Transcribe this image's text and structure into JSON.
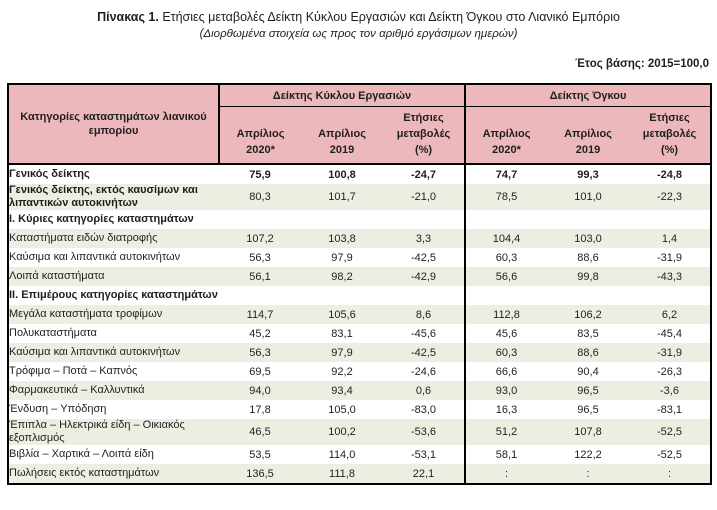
{
  "title": {
    "prefix": "Πίνακας 1.",
    "rest": "Ετήσιες μεταβολές Δείκτη Κύκλου Εργασιών και Δείκτη Όγκου στο Λιανικό Εμπόριο"
  },
  "subtitle": "(Διορθωμένα στοιχεία ως προς τον αριθμό εργάσιμων ημερών)",
  "base_year_note": "Έτος βάσης: 2015=100,0",
  "colors": {
    "header_bg": "#edb8bc",
    "row_shade": "#eeede2",
    "border": "#000000",
    "text": "#1f1f1f"
  },
  "table": {
    "category_header": "Κατηγορίες καταστημάτων λιανικού εμπορίου",
    "groups": [
      {
        "label": "Δείκτης Κύκλου Εργασιών",
        "columns": [
          {
            "lines": [
              "Απρίλιος",
              "2020*"
            ]
          },
          {
            "lines": [
              "Απρίλιος",
              "2019"
            ]
          },
          {
            "lines": [
              "Ετήσιες",
              "μεταβολές",
              "(%)"
            ]
          }
        ]
      },
      {
        "label": "Δείκτης Όγκου",
        "columns": [
          {
            "lines": [
              "Απρίλιος",
              "2020*"
            ]
          },
          {
            "lines": [
              "Απρίλιος",
              "2019"
            ]
          },
          {
            "lines": [
              "Ετήσιες",
              "μεταβολές",
              "(%)"
            ]
          }
        ]
      }
    ],
    "rows": [
      {
        "label": "Γενικός δείκτης",
        "bold": true,
        "boldValues": true,
        "shaded": false,
        "values": [
          "75,9",
          "100,8",
          "-24,7",
          "74,7",
          "99,3",
          "-24,8"
        ]
      },
      {
        "label": "Γενικός δείκτης, εκτός καυσίμων και λιπαντικών αυτοκινήτων",
        "bold": true,
        "boldValues": false,
        "shaded": true,
        "values": [
          "80,3",
          "101,7",
          "-21,0",
          "78,5",
          "101,0",
          "-22,3"
        ]
      },
      {
        "label": "Ι. Κύριες κατηγορίες καταστημάτων",
        "bold": true,
        "boldValues": false,
        "shaded": false,
        "values": [
          "",
          "",
          "",
          "",
          "",
          ""
        ]
      },
      {
        "label": "Καταστήματα ειδών διατροφής",
        "bold": false,
        "boldValues": false,
        "shaded": true,
        "values": [
          "107,2",
          "103,8",
          "3,3",
          "104,4",
          "103,0",
          "1,4"
        ]
      },
      {
        "label": "Καύσιμα και λιπαντικά αυτοκινήτων",
        "bold": false,
        "boldValues": false,
        "shaded": false,
        "values": [
          "56,3",
          "97,9",
          "-42,5",
          "60,3",
          "88,6",
          "-31,9"
        ]
      },
      {
        "label": "Λοιπά καταστήματα",
        "bold": false,
        "boldValues": false,
        "shaded": true,
        "values": [
          "56,1",
          "98,2",
          "-42,9",
          "56,6",
          "99,8",
          "-43,3"
        ]
      },
      {
        "label": "ΙΙ. Επιμέρους κατηγορίες καταστημάτων",
        "bold": true,
        "boldValues": false,
        "shaded": false,
        "values": [
          "",
          "",
          "",
          "",
          "",
          ""
        ]
      },
      {
        "label": "Μεγάλα καταστήματα τροφίμων",
        "bold": false,
        "boldValues": false,
        "shaded": true,
        "values": [
          "114,7",
          "105,6",
          "8,6",
          "112,8",
          "106,2",
          "6,2"
        ]
      },
      {
        "label": "Πολυκαταστήματα",
        "bold": false,
        "boldValues": false,
        "shaded": false,
        "values": [
          "45,2",
          "83,1",
          "-45,6",
          "45,6",
          "83,5",
          "-45,4"
        ]
      },
      {
        "label": "Καύσιμα και λιπαντικά αυτοκινήτων",
        "bold": false,
        "boldValues": false,
        "shaded": true,
        "values": [
          "56,3",
          "97,9",
          "-42,5",
          "60,3",
          "88,6",
          "-31,9"
        ]
      },
      {
        "label": "Τρόφιμα – Ποτά – Καπνός",
        "bold": false,
        "boldValues": false,
        "shaded": false,
        "values": [
          "69,5",
          "92,2",
          "-24,6",
          "66,6",
          "90,4",
          "-26,3"
        ]
      },
      {
        "label": "Φαρμακευτικά – Καλλυντικά",
        "bold": false,
        "boldValues": false,
        "shaded": true,
        "values": [
          "94,0",
          "93,4",
          "0,6",
          "93,0",
          "96,5",
          "-3,6"
        ]
      },
      {
        "label": "Ένδυση – Υπόδηση",
        "bold": false,
        "boldValues": false,
        "shaded": false,
        "values": [
          "17,8",
          "105,0",
          "-83,0",
          "16,3",
          "96,5",
          "-83,1"
        ]
      },
      {
        "label": "Έπιπλα – Ηλεκτρικά είδη – Οικιακός εξοπλισμός",
        "bold": false,
        "boldValues": false,
        "shaded": true,
        "values": [
          "46,5",
          "100,2",
          "-53,6",
          "51,2",
          "107,8",
          "-52,5"
        ]
      },
      {
        "label": "Βιβλία – Χαρτικά – Λοιπά είδη",
        "bold": false,
        "boldValues": false,
        "shaded": false,
        "values": [
          "53,5",
          "114,0",
          "-53,1",
          "58,1",
          "122,2",
          "-52,5"
        ]
      },
      {
        "label": "Πωλήσεις εκτός καταστημάτων",
        "bold": false,
        "boldValues": false,
        "shaded": true,
        "values": [
          "136,5",
          "111,8",
          "22,1",
          ":",
          ":",
          ":"
        ]
      }
    ]
  }
}
